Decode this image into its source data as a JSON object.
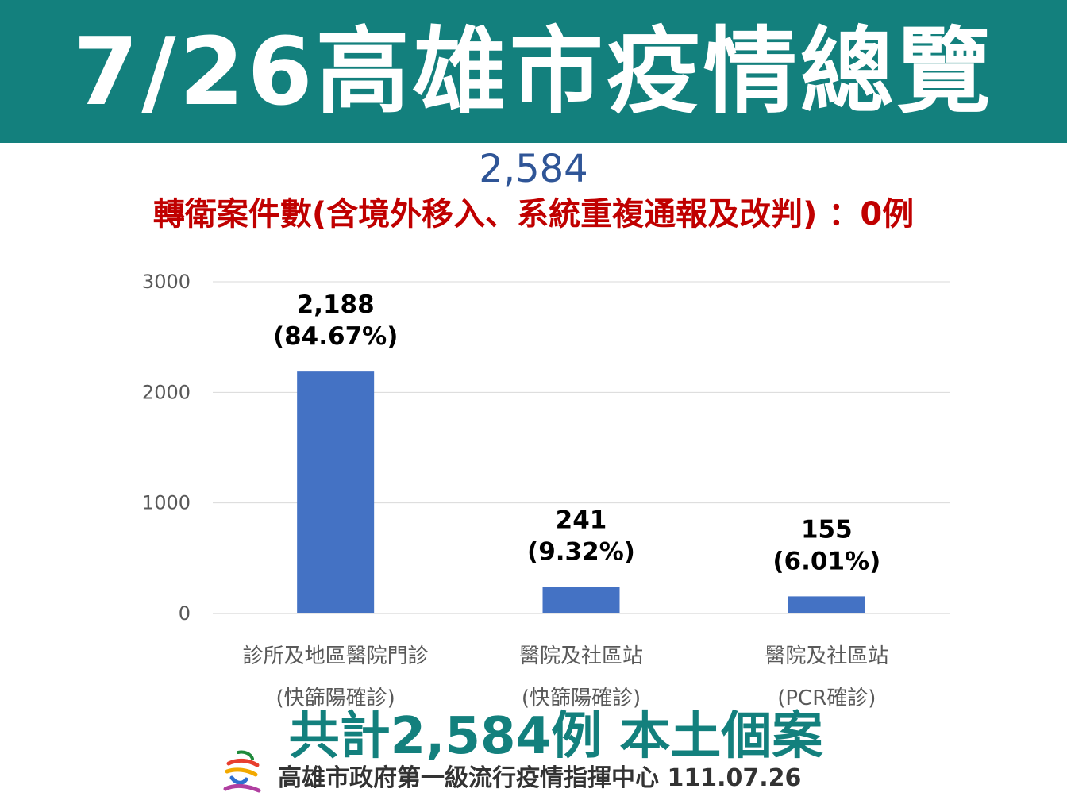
{
  "header": {
    "title": "7/26高雄市疫情總覽"
  },
  "summary": {
    "total_value": "2,584",
    "transfer_note": "轉衛案件數(含境外移入、系統重複通報及改判) ：0例"
  },
  "chart_data": {
    "type": "bar",
    "categories": [
      {
        "line1": "診所及地區醫院門診",
        "line2": "(快篩陽確診)"
      },
      {
        "line1": "醫院及社區站",
        "line2": "(快篩陽確診)"
      },
      {
        "line1": "醫院及社區站",
        "line2": "(PCR確診)"
      }
    ],
    "values": [
      2188,
      241,
      155
    ],
    "data_labels": [
      {
        "count": "2,188",
        "percent": "(84.67%)"
      },
      {
        "count": "241",
        "percent": "(9.32%)"
      },
      {
        "count": "155",
        "percent": "(6.01%)"
      }
    ],
    "y_ticks": [
      "0",
      "1000",
      "2000",
      "3000"
    ],
    "ylim": [
      0,
      3000
    ],
    "grid": true,
    "bar_color": "#4472c4"
  },
  "footer": {
    "total": "共計2,584例 本土個案",
    "org": "高雄市政府第一級流行疫情指揮中心 111.07.26"
  },
  "colors": {
    "banner": "#13807d",
    "total_value": "#2f5597",
    "alert_red": "#c00000",
    "footer_green": "#13807d"
  }
}
